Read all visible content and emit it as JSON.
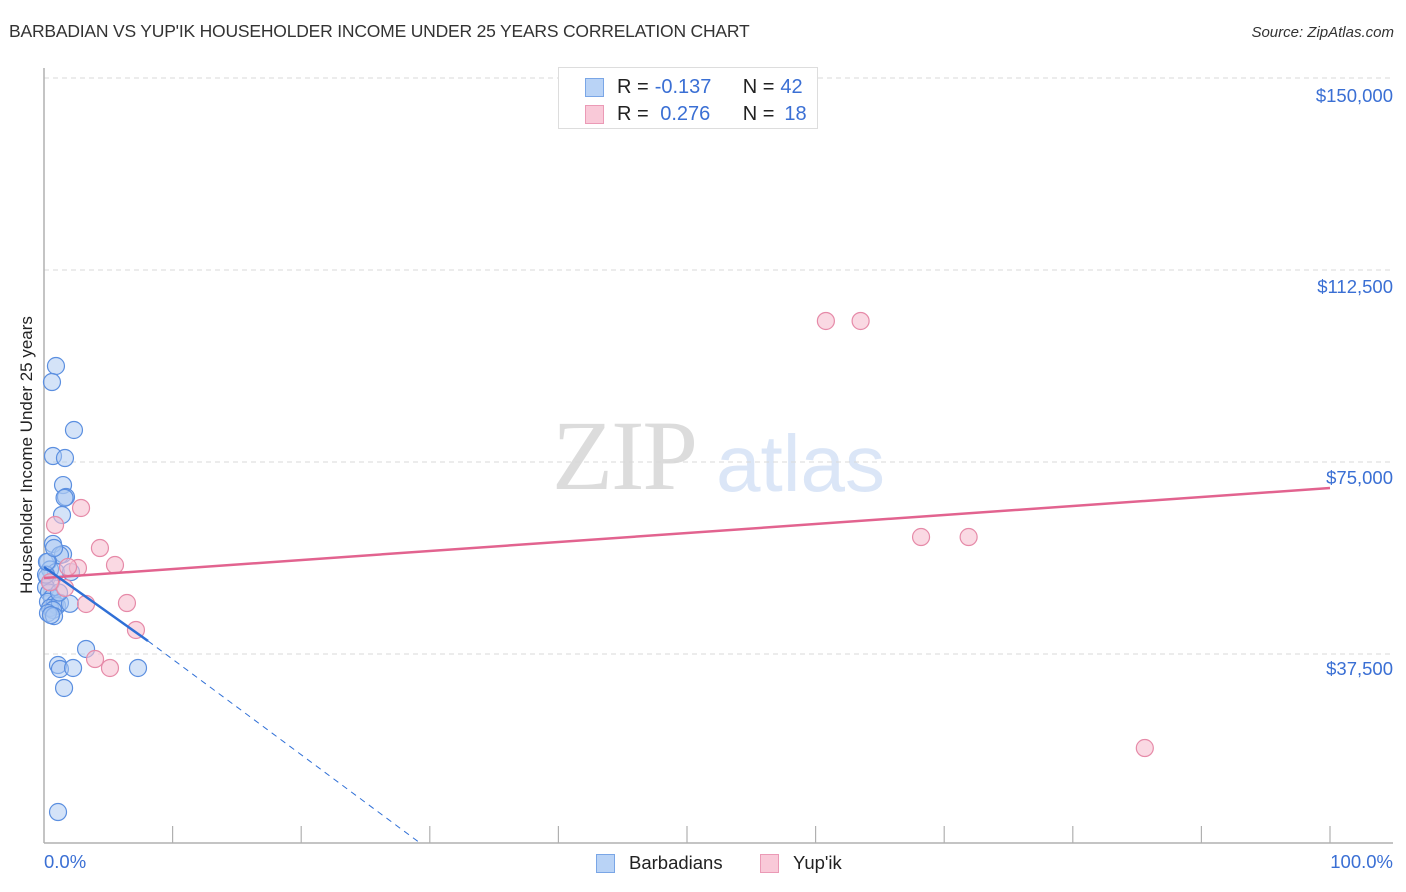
{
  "header": {
    "title": "BARBADIAN VS YUP'IK HOUSEHOLDER INCOME UNDER 25 YEARS CORRELATION CHART",
    "source": "Source: ZipAtlas.com"
  },
  "legend": {
    "rows": [
      {
        "r_label": "R = ",
        "r_value": "-0.137",
        "n_label": "N = ",
        "n_value": "42"
      },
      {
        "r_label": "R = ",
        "r_value": " 0.276",
        "n_label": "N = ",
        "n_value": "18"
      }
    ]
  },
  "bottom_legend": [
    "Barbadians",
    "Yup'ik"
  ],
  "watermark": {
    "zip": "ZIP",
    "atlas": "atlas"
  },
  "colors": {
    "blue_fill": "#a9c8f2",
    "blue_stroke": "#5b8fe0",
    "blue_line": "#2f6fd6",
    "pink_fill": "#f7bfd1",
    "pink_stroke": "#e68aa8",
    "pink_line": "#e2638f",
    "tick_text": "#3a6fd4",
    "grid": "#d9d9d9",
    "axis": "#b0b0b0"
  },
  "chart_data": {
    "type": "scatter",
    "title": "BARBADIAN VS YUP'IK HOUSEHOLDER INCOME UNDER 25 YEARS CORRELATION CHART",
    "xlabel": "",
    "ylabel": "Householder Income Under 25 years",
    "xlim": [
      0,
      100
    ],
    "ylim": [
      0,
      150000
    ],
    "x_tick_labels": [
      "0.0%",
      "100.0%"
    ],
    "y_ticks": [
      37500,
      75000,
      112500,
      150000
    ],
    "y_tick_labels": [
      "$37,500",
      "$75,000",
      "$112,500",
      "$150,000"
    ],
    "grid": true,
    "legend_position": "top-center",
    "series": [
      {
        "name": "Barbadians",
        "r": -0.137,
        "n": 42,
        "points": [
          [
            0.93,
            93750
          ],
          [
            0.62,
            90620
          ],
          [
            2.33,
            81250
          ],
          [
            0.7,
            76170
          ],
          [
            1.63,
            75780
          ],
          [
            1.48,
            70500
          ],
          [
            1.71,
            68160
          ],
          [
            1.6,
            68000
          ],
          [
            1.4,
            64650
          ],
          [
            0.7,
            59000
          ],
          [
            1.48,
            57000
          ],
          [
            1.24,
            56800
          ],
          [
            0.31,
            55500
          ],
          [
            0.47,
            54000
          ],
          [
            0.93,
            53500
          ],
          [
            2.1,
            53500
          ],
          [
            0.23,
            52500
          ],
          [
            0.54,
            51500
          ],
          [
            0.16,
            50500
          ],
          [
            0.39,
            49500
          ],
          [
            0.62,
            48500
          ],
          [
            0.31,
            47700
          ],
          [
            0.85,
            47300
          ],
          [
            1.01,
            46900
          ],
          [
            0.47,
            46500
          ],
          [
            1.24,
            47500
          ],
          [
            2.02,
            47300
          ],
          [
            0.7,
            46100
          ],
          [
            0.31,
            45500
          ],
          [
            0.78,
            44900
          ],
          [
            0.54,
            45100
          ],
          [
            0.16,
            53000
          ],
          [
            0.23,
            55500
          ],
          [
            0.78,
            58200
          ],
          [
            3.27,
            38480
          ],
          [
            1.09,
            35350
          ],
          [
            1.24,
            34570
          ],
          [
            2.26,
            34770
          ],
          [
            1.56,
            30860
          ],
          [
            7.31,
            34770
          ],
          [
            1.09,
            6640
          ],
          [
            1.17,
            49500
          ]
        ],
        "trend": {
          "solid": [
            [
              0,
              54490
            ],
            [
              8.09,
              40040
            ]
          ],
          "dashed": [
            [
              8.09,
              40040
            ],
            [
              29.24,
              586
            ]
          ]
        }
      },
      {
        "name": "Yup'ik",
        "r": 0.276,
        "n": 18,
        "points": [
          [
            60.8,
            102540
          ],
          [
            63.5,
            102540
          ],
          [
            2.88,
            66020
          ],
          [
            0.86,
            62700
          ],
          [
            4.35,
            58200
          ],
          [
            5.52,
            54880
          ],
          [
            2.64,
            54300
          ],
          [
            1.63,
            50400
          ],
          [
            3.27,
            47270
          ],
          [
            6.45,
            47460
          ],
          [
            7.15,
            42190
          ],
          [
            3.97,
            36520
          ],
          [
            5.13,
            34770
          ],
          [
            68.2,
            60350
          ],
          [
            71.9,
            60350
          ],
          [
            85.6,
            19140
          ],
          [
            0.47,
            51500
          ],
          [
            1.87,
            54500
          ]
        ],
        "trend": {
          "solid": [
            [
              0,
              52340
            ],
            [
              100,
              69920
            ]
          ]
        }
      }
    ]
  }
}
